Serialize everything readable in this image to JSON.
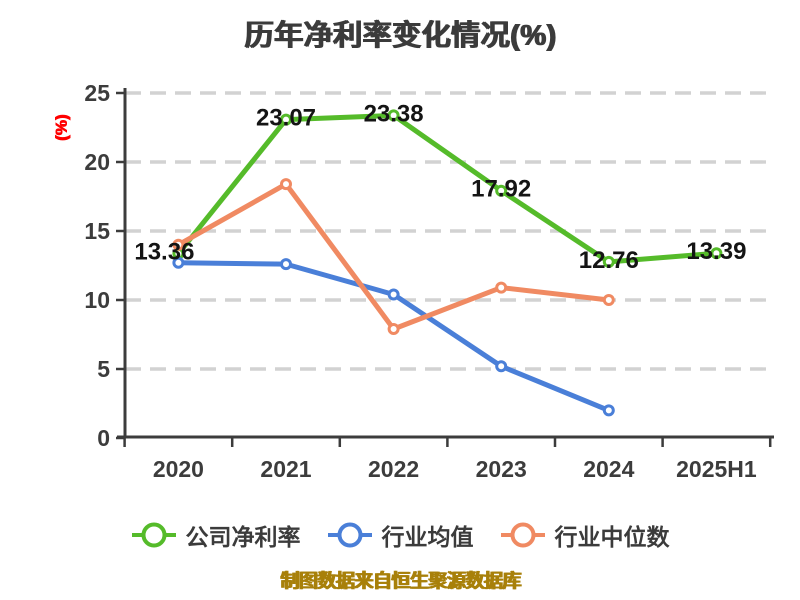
{
  "title": "历年净利率变化情况(%)",
  "y_axis_unit": "(%)",
  "footer_note": "制图数据来自恒生聚源数据库",
  "colors": {
    "axis": "#3c3c3c",
    "grid": "#d2d2d2",
    "title_text": "#3b3b3b",
    "data_label_text": "#141414",
    "y_unit_red": "#ff0000",
    "footer_gold": "#a8800a",
    "legend_text": "#3b3b3b",
    "marker_fill": "#ffffff"
  },
  "chart_data": {
    "type": "line",
    "title": "历年净利率变化情况(%)",
    "xlabel": "",
    "ylabel": "(%)",
    "categories": [
      "2020",
      "2021",
      "2022",
      "2023",
      "2024",
      "2025H1"
    ],
    "yticks": [
      0,
      5,
      10,
      15,
      20,
      25
    ],
    "ylim": [
      0,
      25
    ],
    "grid": "horizontal-dashed",
    "legend_position": "bottom",
    "series": [
      {
        "key": "company-net-margin",
        "name": "公司净利率",
        "color": "#55bb2a",
        "values": [
          13.36,
          23.07,
          23.38,
          17.92,
          12.76,
          13.39
        ],
        "data_labels": [
          "13.36",
          "23.07",
          "23.38",
          "17.92",
          "12.76",
          "13.39"
        ]
      },
      {
        "key": "industry-mean",
        "name": "行业均值",
        "color": "#4a7fd8",
        "values": [
          12.7,
          12.6,
          10.4,
          5.2,
          2.0,
          null
        ],
        "data_labels": null
      },
      {
        "key": "industry-median",
        "name": "行业中位数",
        "color": "#f08a62",
        "values": [
          14.0,
          18.4,
          7.9,
          10.9,
          10.0,
          null
        ],
        "data_labels": null
      }
    ]
  }
}
